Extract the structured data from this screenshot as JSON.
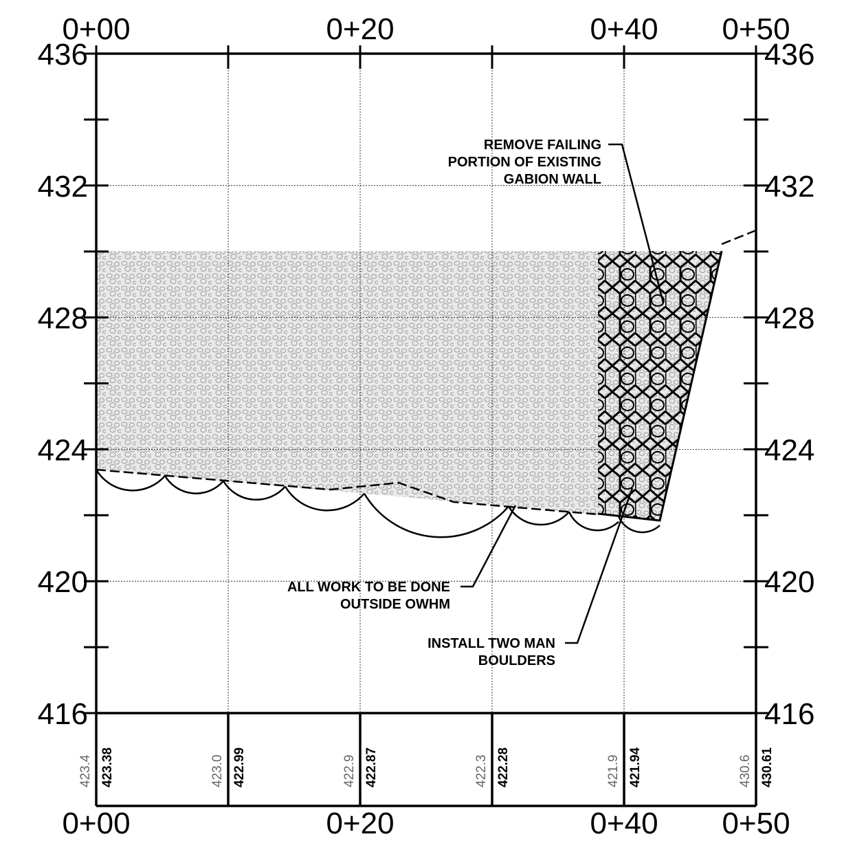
{
  "stations_top": [
    "0+00",
    "0+20",
    "0+40",
    "0+50"
  ],
  "stations_bottom": [
    "0+00",
    "0+20",
    "0+40",
    "0+50"
  ],
  "elevations_left": [
    "436",
    "432",
    "428",
    "424",
    "420",
    "416"
  ],
  "elevations_right": [
    "436",
    "432",
    "428",
    "424",
    "420",
    "416"
  ],
  "existing_grades": [
    "423.4",
    "423.0",
    "422.9",
    "422.3",
    "421.9",
    "430.6"
  ],
  "proposed_grades": [
    "423.38",
    "422.99",
    "422.87",
    "422.28",
    "421.94",
    "430.61"
  ],
  "notes": [
    {
      "lines": [
        "REMOVE FAILING",
        "PORTION OF EXISTING",
        "GABION WALL"
      ]
    },
    {
      "lines": [
        "ALL WORK TO BE DONE",
        "OUTSIDE OWHM"
      ]
    },
    {
      "lines": [
        "INSTALL TWO MAN",
        "BOULDERS"
      ]
    }
  ]
}
